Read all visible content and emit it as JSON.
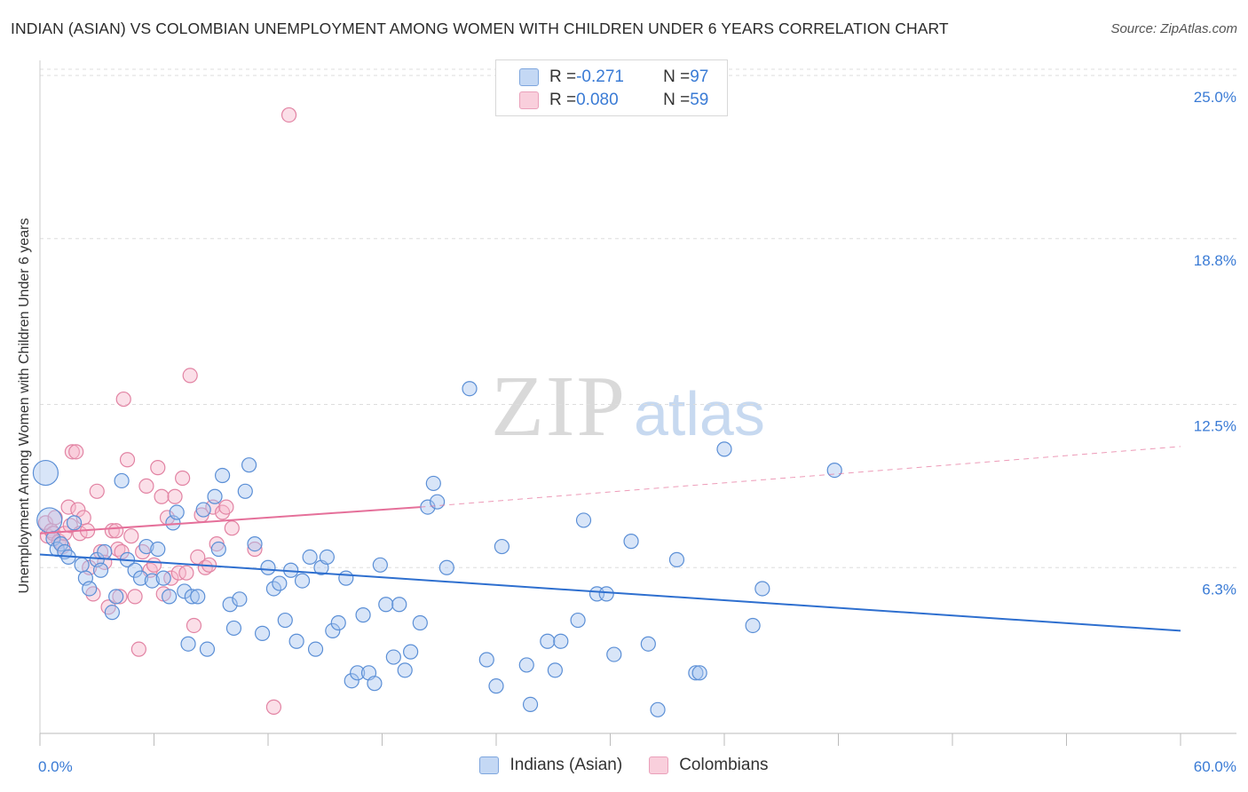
{
  "title": "INDIAN (ASIAN) VS COLOMBIAN UNEMPLOYMENT AMONG WOMEN WITH CHILDREN UNDER 6 YEARS CORRELATION CHART",
  "source": "Source: ZipAtlas.com",
  "watermark": {
    "zip": "ZIP",
    "atlas": "atlas"
  },
  "legend": {
    "rows": [
      {
        "r_label": "R = ",
        "r_value": "-0.271",
        "n_label": "N = ",
        "n_value": "97"
      },
      {
        "r_label": "R = ",
        "r_value": "0.080",
        "n_label": "N = ",
        "n_value": "59"
      }
    ]
  },
  "bottom_legend": {
    "indian": "Indians (Asian)",
    "colombian": "Colombians"
  },
  "colors": {
    "blue_fill": "#a9c6ef",
    "blue_stroke": "#5b8fd6",
    "blue_line": "#2e6fcf",
    "pink_fill": "#f6b8cc",
    "pink_stroke": "#e283a3",
    "pink_line": "#e5709a",
    "tick": "#3a7bd5",
    "grid": "#dddddd"
  },
  "chart_data": {
    "type": "scatter",
    "title": "INDIAN (ASIAN) VS COLOMBIAN UNEMPLOYMENT AMONG WOMEN WITH CHILDREN UNDER 6 YEARS CORRELATION CHART",
    "xlabel": "",
    "ylabel": "Unemployment Among Women with Children Under 6 years",
    "xlim": [
      0,
      60
    ],
    "ylim": [
      0,
      25.0
    ],
    "x_tick_labels": [
      "0.0%",
      "60.0%"
    ],
    "y_ticks": [
      6.3,
      12.5,
      18.8,
      25.0
    ],
    "y_tick_labels": [
      "6.3%",
      "12.5%",
      "18.8%",
      "25.0%"
    ],
    "grid": "horizontal dashed",
    "legend_position": "top-center",
    "series": [
      {
        "name": "Indians (Asian)",
        "R": -0.271,
        "N": 97,
        "trend": {
          "x": [
            0,
            60
          ],
          "y": [
            6.8,
            3.9
          ]
        },
        "points": [
          [
            0.3,
            9.9
          ],
          [
            0.5,
            8.1
          ],
          [
            0.7,
            7.4
          ],
          [
            0.9,
            7.0
          ],
          [
            1.1,
            7.2
          ],
          [
            1.3,
            6.9
          ],
          [
            1.5,
            6.7
          ],
          [
            1.8,
            8.0
          ],
          [
            2.2,
            6.4
          ],
          [
            2.4,
            5.9
          ],
          [
            2.6,
            5.5
          ],
          [
            3.0,
            6.6
          ],
          [
            3.2,
            6.2
          ],
          [
            3.4,
            6.9
          ],
          [
            3.8,
            4.6
          ],
          [
            4.0,
            5.2
          ],
          [
            4.3,
            9.6
          ],
          [
            4.6,
            6.6
          ],
          [
            5.0,
            6.2
          ],
          [
            5.3,
            5.9
          ],
          [
            5.6,
            7.1
          ],
          [
            5.9,
            5.8
          ],
          [
            6.2,
            7.0
          ],
          [
            6.5,
            5.9
          ],
          [
            6.8,
            5.2
          ],
          [
            7.0,
            8.0
          ],
          [
            7.2,
            8.4
          ],
          [
            7.6,
            5.4
          ],
          [
            7.8,
            3.4
          ],
          [
            8.0,
            5.2
          ],
          [
            8.3,
            5.2
          ],
          [
            8.6,
            8.5
          ],
          [
            8.8,
            3.2
          ],
          [
            9.2,
            9.0
          ],
          [
            9.4,
            7.0
          ],
          [
            9.6,
            9.8
          ],
          [
            10.0,
            4.9
          ],
          [
            10.2,
            4.0
          ],
          [
            10.5,
            5.1
          ],
          [
            10.8,
            9.2
          ],
          [
            11.0,
            10.2
          ],
          [
            11.3,
            7.2
          ],
          [
            11.7,
            3.8
          ],
          [
            12.0,
            6.3
          ],
          [
            12.3,
            5.5
          ],
          [
            12.6,
            5.7
          ],
          [
            12.9,
            4.3
          ],
          [
            13.2,
            6.2
          ],
          [
            13.5,
            3.5
          ],
          [
            13.8,
            5.8
          ],
          [
            14.2,
            6.7
          ],
          [
            14.5,
            3.2
          ],
          [
            14.8,
            6.3
          ],
          [
            15.1,
            6.7
          ],
          [
            15.4,
            3.9
          ],
          [
            15.7,
            4.2
          ],
          [
            16.1,
            5.9
          ],
          [
            16.4,
            2.0
          ],
          [
            16.7,
            2.3
          ],
          [
            17.0,
            4.5
          ],
          [
            17.3,
            2.3
          ],
          [
            17.6,
            1.9
          ],
          [
            17.9,
            6.4
          ],
          [
            18.2,
            4.9
          ],
          [
            18.6,
            2.9
          ],
          [
            18.9,
            4.9
          ],
          [
            19.2,
            2.4
          ],
          [
            19.5,
            3.1
          ],
          [
            20.0,
            4.2
          ],
          [
            20.4,
            8.6
          ],
          [
            20.7,
            9.5
          ],
          [
            20.9,
            8.8
          ],
          [
            21.4,
            6.3
          ],
          [
            22.6,
            13.1
          ],
          [
            23.5,
            2.8
          ],
          [
            24.0,
            1.8
          ],
          [
            24.3,
            7.1
          ],
          [
            25.6,
            2.6
          ],
          [
            25.8,
            1.1
          ],
          [
            26.7,
            3.5
          ],
          [
            27.1,
            2.4
          ],
          [
            27.4,
            3.5
          ],
          [
            28.3,
            4.3
          ],
          [
            28.6,
            8.1
          ],
          [
            29.3,
            5.3
          ],
          [
            29.8,
            5.3
          ],
          [
            30.2,
            3.0
          ],
          [
            31.1,
            7.3
          ],
          [
            32.0,
            3.4
          ],
          [
            32.5,
            0.9
          ],
          [
            33.5,
            6.6
          ],
          [
            34.5,
            2.3
          ],
          [
            34.7,
            2.3
          ],
          [
            36.0,
            10.8
          ],
          [
            37.5,
            4.1
          ],
          [
            38.0,
            5.5
          ],
          [
            41.8,
            10.0
          ]
        ]
      },
      {
        "name": "Colombians",
        "R": 0.08,
        "N": 59,
        "trend": {
          "x": [
            0,
            20
          ],
          "y": [
            7.6,
            8.6
          ]
        },
        "trend_extended": {
          "x": [
            20,
            60
          ],
          "y": [
            8.6,
            10.9
          ]
        },
        "points": [
          [
            0.3,
            8.0
          ],
          [
            0.4,
            7.5
          ],
          [
            0.6,
            7.7
          ],
          [
            0.7,
            7.6
          ],
          [
            0.8,
            8.2
          ],
          [
            1.0,
            7.3
          ],
          [
            1.2,
            7.1
          ],
          [
            1.3,
            7.6
          ],
          [
            1.5,
            8.6
          ],
          [
            1.6,
            7.9
          ],
          [
            1.7,
            10.7
          ],
          [
            1.9,
            10.7
          ],
          [
            2.0,
            8.5
          ],
          [
            2.1,
            7.6
          ],
          [
            2.3,
            8.2
          ],
          [
            2.5,
            7.7
          ],
          [
            2.6,
            6.3
          ],
          [
            2.8,
            5.3
          ],
          [
            3.0,
            9.2
          ],
          [
            3.2,
            6.9
          ],
          [
            3.4,
            6.5
          ],
          [
            3.6,
            4.8
          ],
          [
            3.8,
            7.7
          ],
          [
            4.0,
            7.7
          ],
          [
            4.1,
            7.0
          ],
          [
            4.2,
            5.2
          ],
          [
            4.3,
            6.9
          ],
          [
            4.4,
            12.7
          ],
          [
            4.6,
            10.4
          ],
          [
            4.8,
            7.5
          ],
          [
            5.0,
            5.2
          ],
          [
            5.2,
            3.2
          ],
          [
            5.4,
            6.9
          ],
          [
            5.6,
            9.4
          ],
          [
            5.8,
            6.2
          ],
          [
            6.0,
            6.4
          ],
          [
            6.2,
            10.1
          ],
          [
            6.4,
            9.0
          ],
          [
            6.5,
            5.3
          ],
          [
            6.7,
            8.2
          ],
          [
            6.9,
            5.9
          ],
          [
            7.1,
            9.0
          ],
          [
            7.3,
            6.1
          ],
          [
            7.5,
            9.7
          ],
          [
            7.7,
            6.1
          ],
          [
            7.9,
            13.6
          ],
          [
            8.1,
            4.1
          ],
          [
            8.3,
            6.7
          ],
          [
            8.5,
            8.3
          ],
          [
            8.7,
            6.3
          ],
          [
            8.9,
            6.4
          ],
          [
            9.1,
            8.6
          ],
          [
            9.3,
            7.2
          ],
          [
            9.6,
            8.4
          ],
          [
            9.8,
            8.6
          ],
          [
            10.1,
            7.8
          ],
          [
            11.3,
            7.0
          ],
          [
            12.3,
            1.0
          ],
          [
            13.1,
            23.5
          ]
        ]
      }
    ]
  }
}
